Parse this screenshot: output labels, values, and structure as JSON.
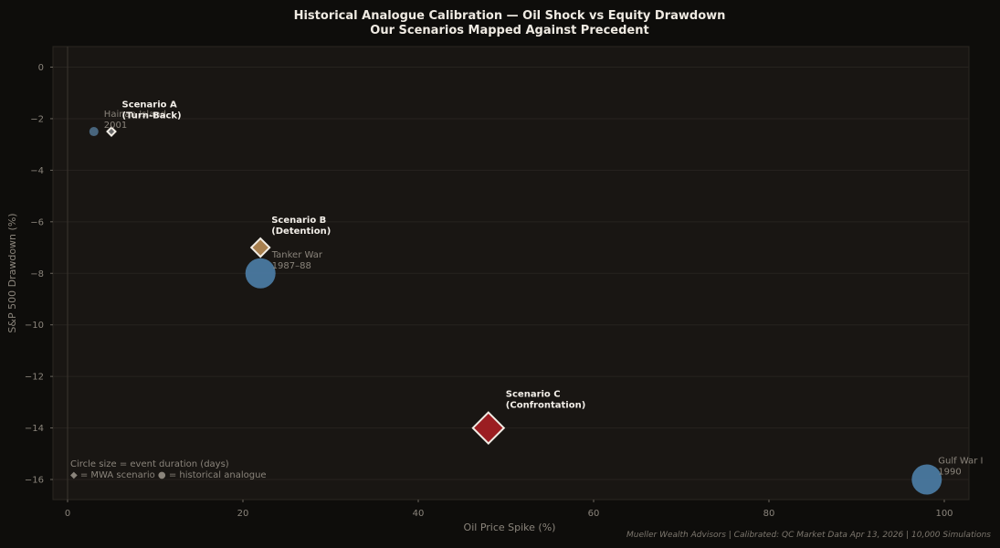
{
  "chart_data": {
    "type": "scatter",
    "title": "Historical Analogue Calibration — Oil Shock vs Equity Drawdown",
    "subtitle": "Our Scenarios Mapped Against Precedent",
    "xlabel": "Oil Price Spike (%)",
    "ylabel": "S&P 500 Drawdown (%)",
    "xlim": [
      -2,
      103
    ],
    "ylim": [
      -16.8,
      0.8
    ],
    "x_ticks": [
      0,
      20,
      40,
      60,
      80,
      100
    ],
    "y_ticks": [
      0,
      -2,
      -4,
      -6,
      -8,
      -10,
      -12,
      -14,
      -16
    ],
    "grid": "horizontal",
    "historical_analogues": [
      {
        "label_lines": [
          "Hainan Island",
          "2001"
        ],
        "x": 3,
        "y": -2.5,
        "size": "small",
        "color": "#4e6e8a"
      },
      {
        "label_lines": [
          "Tanker War",
          "1987–88"
        ],
        "x": 22,
        "y": -8,
        "size": "large",
        "color": "#4d7ea8"
      },
      {
        "label_lines": [
          "Gulf War I",
          "1990"
        ],
        "x": 98,
        "y": -16,
        "size": "large",
        "color": "#4d7ea8"
      }
    ],
    "scenarios": [
      {
        "label_lines": [
          "Scenario A",
          "(Turn-Back)"
        ],
        "x": 5,
        "y": -2.5,
        "size": "small",
        "color": "#6b6b6b"
      },
      {
        "label_lines": [
          "Scenario B",
          "(Detention)"
        ],
        "x": 22,
        "y": -7,
        "size": "medium",
        "color": "#a8804f"
      },
      {
        "label_lines": [
          "Scenario C",
          "(Confrontation)"
        ],
        "x": 48,
        "y": -14,
        "size": "large",
        "color": "#9b1e22"
      }
    ],
    "notes": [
      "Circle size = event duration (days)",
      "◆ = MWA scenario   ● = historical analogue"
    ],
    "footer": "Mueller Wealth Advisors  |  Calibrated: QC Market Data Apr 13, 2026  |  10,000 Simulations"
  }
}
